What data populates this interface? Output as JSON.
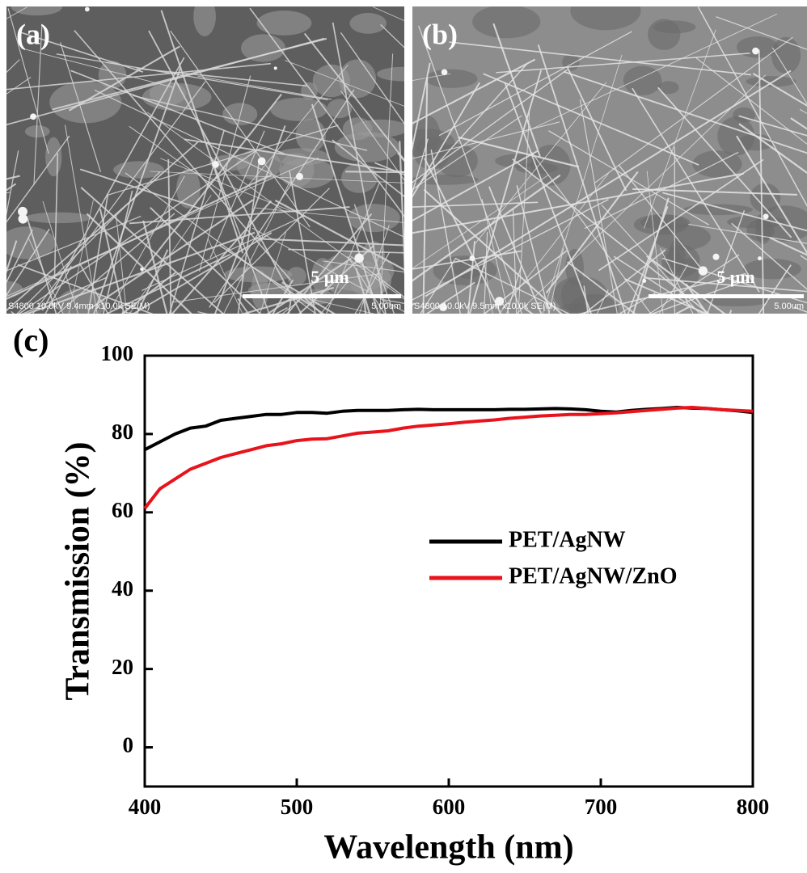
{
  "panels": [
    {
      "label": "(a)",
      "scale_label": "5 µm",
      "info": "S4800 10.0kV 9.4mm x10.0k SE(M)",
      "scale_text": "5.00um"
    },
    {
      "label": "(b)",
      "scale_label": "5 µm",
      "info": "S4800 10.0kV 9.5mm x10.0k SE(M)",
      "scale_text": "5.00um"
    }
  ],
  "chart_data": {
    "type": "line",
    "panel_label": "(c)",
    "x_label": "Wavelength (nm)",
    "y_label": "Transmission (%)",
    "x": [
      400,
      410,
      420,
      430,
      440,
      450,
      460,
      470,
      480,
      490,
      500,
      510,
      520,
      530,
      540,
      550,
      560,
      570,
      580,
      590,
      600,
      610,
      620,
      630,
      640,
      650,
      660,
      670,
      680,
      690,
      700,
      710,
      720,
      730,
      740,
      750,
      760,
      770,
      780,
      790,
      800
    ],
    "series": [
      {
        "name": "PET/AgNW",
        "color": "#000000",
        "values": [
          76,
          78,
          80,
          81.5,
          82,
          83.5,
          84,
          84.5,
          85,
          85,
          85.5,
          85.5,
          85.3,
          85.8,
          86,
          86,
          86,
          86.2,
          86.3,
          86.2,
          86.2,
          86.2,
          86.2,
          86.2,
          86.3,
          86.3,
          86.4,
          86.5,
          86.4,
          86.2,
          85.8,
          85.6,
          86,
          86.3,
          86.5,
          86.8,
          86.6,
          86.5,
          86.2,
          85.9,
          85.5
        ]
      },
      {
        "name": "PET/AgNW/ZnO",
        "color": "#e8131b",
        "values": [
          61,
          66,
          68.5,
          71,
          72.5,
          74,
          75,
          76,
          77,
          77.5,
          78.3,
          78.7,
          78.8,
          79.5,
          80.2,
          80.5,
          80.8,
          81.5,
          82,
          82.3,
          82.6,
          83,
          83.3,
          83.6,
          84,
          84.3,
          84.6,
          84.8,
          85,
          85,
          85.2,
          85.4,
          85.7,
          86,
          86.3,
          86.6,
          86.8,
          86.5,
          86.2,
          86,
          85.8
        ]
      }
    ],
    "xlim": [
      400,
      800
    ],
    "ylim": [
      -10,
      100
    ],
    "xticks": [
      400,
      500,
      600,
      700,
      800
    ],
    "yticks": [
      0,
      20,
      40,
      60,
      80,
      100
    ],
    "legend": "right"
  }
}
